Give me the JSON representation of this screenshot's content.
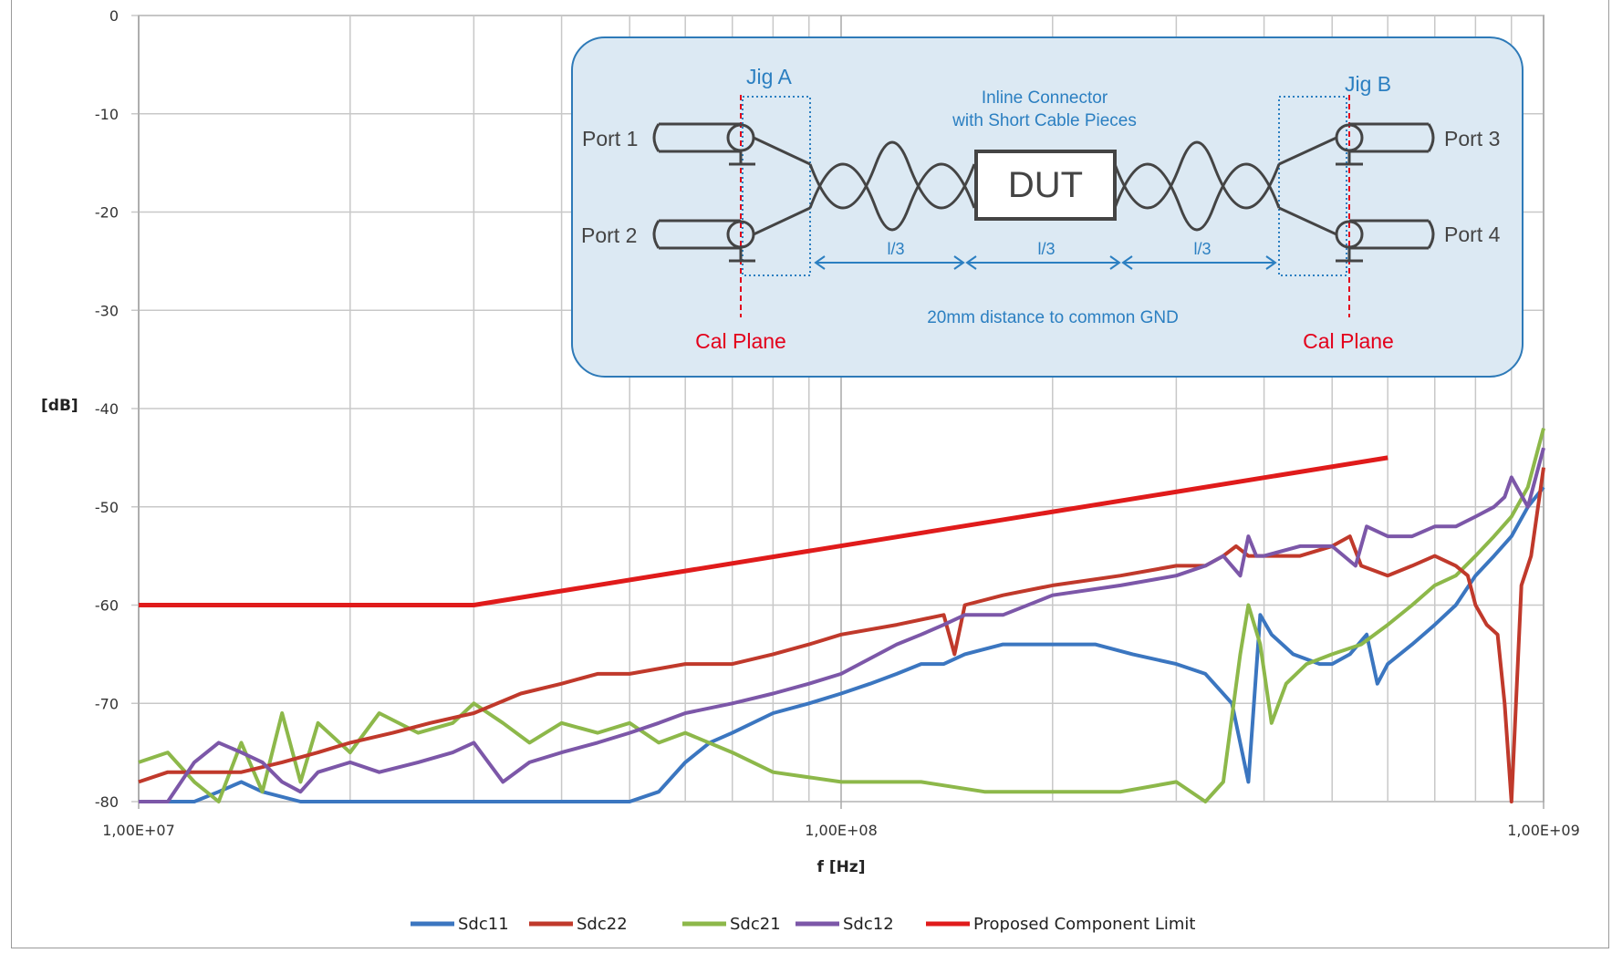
{
  "chart_data": {
    "type": "line",
    "xlabel": "f [Hz]",
    "ylabel": "[dB]",
    "x_scale": "log",
    "xlim": [
      10000000,
      1000000000
    ],
    "ylim": [
      -80,
      0
    ],
    "x_ticks": [
      "1,00E+07",
      "1,00E+08",
      "1,00E+09"
    ],
    "y_ticks": [
      "0",
      "-10",
      "-20",
      "-30",
      "-40",
      "-50",
      "-60",
      "-70",
      "-80"
    ],
    "grid": true,
    "legend_position": "bottom",
    "series": [
      {
        "name": "Sdc11",
        "color": "#3b76c0",
        "x": [
          10000000,
          11000000,
          12000000,
          13000000,
          14000000,
          15000000,
          17000000,
          20000000,
          25000000,
          30000000,
          35000000,
          40000000,
          45000000,
          50000000,
          55000000,
          60000000,
          65000000,
          70000000,
          80000000,
          90000000,
          100000000,
          110000000,
          120000000,
          130000000,
          140000000,
          150000000,
          170000000,
          200000000,
          230000000,
          260000000,
          300000000,
          330000000,
          360000000,
          380000000,
          395000000,
          410000000,
          440000000,
          480000000,
          500000000,
          530000000,
          560000000,
          580000000,
          600000000,
          650000000,
          700000000,
          750000000,
          800000000,
          850000000,
          900000000,
          950000000,
          1000000000
        ],
        "y": [
          -80,
          -80,
          -80,
          -79,
          -78,
          -79,
          -80,
          -80,
          -80,
          -80,
          -80,
          -80,
          -80,
          -80,
          -79,
          -76,
          -74,
          -73,
          -71,
          -70,
          -69,
          -68,
          -67,
          -66,
          -66,
          -65,
          -64,
          -64,
          -64,
          -65,
          -66,
          -67,
          -70,
          -78,
          -61,
          -63,
          -65,
          -66,
          -66,
          -65,
          -63,
          -68,
          -66,
          -64,
          -62,
          -60,
          -57,
          -55,
          -53,
          -50,
          -48
        ]
      },
      {
        "name": "Sdc22",
        "color": "#c0392b",
        "x": [
          10000000,
          11000000,
          12000000,
          14000000,
          16000000,
          18000000,
          20000000,
          23000000,
          26000000,
          30000000,
          35000000,
          40000000,
          45000000,
          50000000,
          60000000,
          70000000,
          80000000,
          90000000,
          100000000,
          120000000,
          140000000,
          145000000,
          150000000,
          170000000,
          200000000,
          250000000,
          300000000,
          330000000,
          350000000,
          365000000,
          380000000,
          400000000,
          450000000,
          500000000,
          530000000,
          550000000,
          600000000,
          650000000,
          700000000,
          750000000,
          780000000,
          800000000,
          830000000,
          860000000,
          880000000,
          900000000,
          930000000,
          960000000,
          1000000000
        ],
        "y": [
          -78,
          -77,
          -77,
          -77,
          -76,
          -75,
          -74,
          -73,
          -72,
          -71,
          -69,
          -68,
          -67,
          -67,
          -66,
          -66,
          -65,
          -64,
          -63,
          -62,
          -61,
          -65,
          -60,
          -59,
          -58,
          -57,
          -56,
          -56,
          -55,
          -54,
          -55,
          -55,
          -55,
          -54,
          -53,
          -56,
          -57,
          -56,
          -55,
          -56,
          -57,
          -60,
          -62,
          -63,
          -70,
          -80,
          -58,
          -55,
          -46
        ]
      },
      {
        "name": "Sdc21",
        "color": "#8db84a",
        "x": [
          10000000,
          11000000,
          12000000,
          13000000,
          14000000,
          15000000,
          16000000,
          17000000,
          18000000,
          20000000,
          22000000,
          25000000,
          28000000,
          30000000,
          33000000,
          36000000,
          40000000,
          45000000,
          50000000,
          55000000,
          60000000,
          70000000,
          80000000,
          100000000,
          130000000,
          160000000,
          200000000,
          250000000,
          300000000,
          330000000,
          350000000,
          370000000,
          380000000,
          395000000,
          410000000,
          430000000,
          460000000,
          500000000,
          550000000,
          600000000,
          650000000,
          700000000,
          750000000,
          800000000,
          850000000,
          900000000,
          950000000,
          1000000000
        ],
        "y": [
          -76,
          -75,
          -78,
          -80,
          -74,
          -79,
          -71,
          -78,
          -72,
          -75,
          -71,
          -73,
          -72,
          -70,
          -72,
          -74,
          -72,
          -73,
          -72,
          -74,
          -73,
          -75,
          -77,
          -78,
          -78,
          -79,
          -79,
          -79,
          -78,
          -80,
          -78,
          -65,
          -60,
          -64,
          -72,
          -68,
          -66,
          -65,
          -64,
          -62,
          -60,
          -58,
          -57,
          -55,
          -53,
          -51,
          -48,
          -42
        ]
      },
      {
        "name": "Sdc12",
        "color": "#7c57a8",
        "x": [
          10000000,
          11000000,
          12000000,
          13000000,
          14000000,
          15000000,
          16000000,
          17000000,
          18000000,
          20000000,
          22000000,
          25000000,
          28000000,
          30000000,
          33000000,
          36000000,
          40000000,
          45000000,
          50000000,
          55000000,
          60000000,
          70000000,
          80000000,
          90000000,
          100000000,
          120000000,
          130000000,
          140000000,
          150000000,
          170000000,
          200000000,
          250000000,
          300000000,
          330000000,
          350000000,
          370000000,
          380000000,
          390000000,
          400000000,
          450000000,
          500000000,
          540000000,
          560000000,
          600000000,
          650000000,
          700000000,
          750000000,
          800000000,
          850000000,
          880000000,
          900000000,
          950000000,
          1000000000
        ],
        "y": [
          -80,
          -80,
          -76,
          -74,
          -75,
          -76,
          -78,
          -79,
          -77,
          -76,
          -77,
          -76,
          -75,
          -74,
          -78,
          -76,
          -75,
          -74,
          -73,
          -72,
          -71,
          -70,
          -69,
          -68,
          -67,
          -64,
          -63,
          -62,
          -61,
          -61,
          -59,
          -58,
          -57,
          -56,
          -55,
          -57,
          -53,
          -55,
          -55,
          -54,
          -54,
          -56,
          -52,
          -53,
          -53,
          -52,
          -52,
          -51,
          -50,
          -49,
          -47,
          -50,
          -44
        ]
      },
      {
        "name": "Proposed Component Limit",
        "color": "#e01b1b",
        "x": [
          10000000,
          30000000,
          600000000
        ],
        "y": [
          -60,
          -60,
          -45
        ]
      }
    ],
    "inset_diagram": {
      "jig_a": "Jig A",
      "jig_b": "Jig B",
      "port1": "Port 1",
      "port2": "Port 2",
      "port3": "Port 3",
      "port4": "Port 4",
      "dut": "DUT",
      "connector_line1": "Inline Connector",
      "connector_line2": "with Short Cable Pieces",
      "segment_label": "l/3",
      "distance_note": "20mm distance to common GND",
      "cal_plane": "Cal Plane",
      "colors": {
        "box_fill": "#dce9f3",
        "box_border": "#2e7ab8",
        "annotation": "#2b7fc1",
        "cal_plane": "#e3001b",
        "wire": "#444444"
      }
    }
  }
}
